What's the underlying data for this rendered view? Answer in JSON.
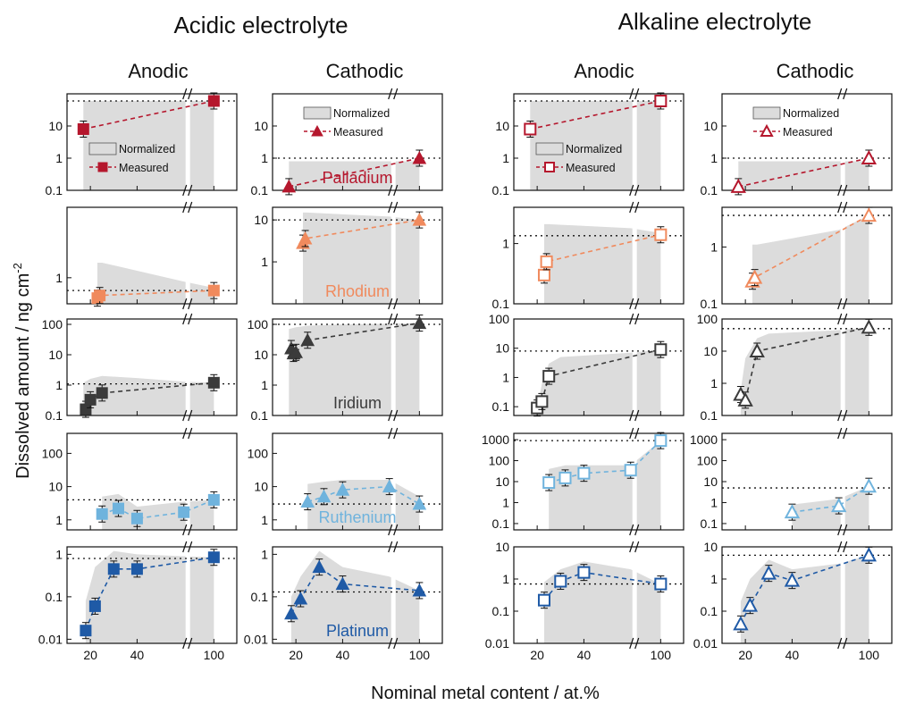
{
  "figure": {
    "group_titles": [
      "Acidic electrolyte",
      "Alkaline electrolyte"
    ],
    "column_titles": [
      "Anodic",
      "Cathodic",
      "Anodic",
      "Cathodic"
    ],
    "ylabel": "Dissolved amount / ng cm",
    "ylabel_superscript": "-2",
    "xlabel": "Nominal metal content / at.%",
    "x_tick_labels": [
      "20",
      "40",
      "100"
    ],
    "legend": {
      "normalized": "Normalized",
      "measured": "Measured"
    }
  },
  "colors": {
    "Palladium": "#b5172d",
    "Rhodium": "#f08a5d",
    "Iridium": "#3b3b3b",
    "Ruthenium": "#6fb3dd",
    "Platinum": "#1f5aa6",
    "shade": "#dcdcdc"
  },
  "chart_data": {
    "type": "scatter",
    "x_axis": {
      "label": "Nominal metal content / at.%",
      "ticks": [
        20,
        40,
        100
      ],
      "broken_between": [
        60,
        90
      ]
    },
    "y_scale": "log",
    "rows": [
      {
        "metal": "Palladium",
        "panels": [
          {
            "column": "Acidic Anodic",
            "yticks": [
              "0.1",
              "1",
              "10"
            ],
            "ylim": [
              0.1,
              100
            ],
            "reference_line": 60,
            "measured": {
              "x": [
                17,
                100
              ],
              "y": [
                8,
                60
              ]
            },
            "normalized": {
              "x": [
                17,
                100
              ],
              "y": [
                60,
                60
              ]
            },
            "legend": "right-middle"
          },
          {
            "column": "Acidic Cathodic",
            "yticks": [
              "0.1",
              "1",
              "10"
            ],
            "ylim": [
              0.1,
              100
            ],
            "reference_line": 1,
            "measured": {
              "x": [
                17,
                100
              ],
              "y": [
                0.13,
                1
              ]
            },
            "normalized": {
              "x": [
                17,
                100
              ],
              "y": [
                0.8,
                0.8
              ]
            },
            "legend": "top-left",
            "label": "Palladium"
          },
          {
            "column": "Alkaline Anodic",
            "yticks": [
              "0.1",
              "1",
              "10"
            ],
            "ylim": [
              0.1,
              100
            ],
            "reference_line": 60,
            "measured": {
              "x": [
                17,
                100
              ],
              "y": [
                8,
                60
              ]
            },
            "normalized": {
              "x": [
                17,
                100
              ],
              "y": [
                60,
                60
              ]
            },
            "legend": "right-middle"
          },
          {
            "column": "Alkaline Cathodic",
            "yticks": [
              "0.1",
              "1",
              "10"
            ],
            "ylim": [
              0.1,
              100
            ],
            "reference_line": 1,
            "measured": {
              "x": [
                17,
                100
              ],
              "y": [
                0.13,
                1
              ]
            },
            "normalized": {
              "x": [
                17,
                100
              ],
              "y": [
                0.8,
                0.8
              ]
            },
            "legend": "top-left"
          }
        ]
      },
      {
        "metal": "Rhodium",
        "panels": [
          {
            "column": "Acidic Anodic",
            "yticks": [
              "1"
            ],
            "ylim": [
              0.33,
              20
            ],
            "reference_line": 0.58,
            "measured": {
              "x": [
                23,
                24,
                100
              ],
              "y": [
                0.42,
                0.47,
                0.58
              ]
            },
            "normalized": {
              "x": [
                23,
                25,
                60,
                100
              ],
              "y": [
                1.9,
                1.9,
                0.85,
                0.65
              ]
            }
          },
          {
            "column": "Acidic Cathodic",
            "yticks": [
              "1",
              "10"
            ],
            "ylim": [
              0.1,
              20
            ],
            "reference_line": 10,
            "measured": {
              "x": [
                23,
                24,
                100
              ],
              "y": [
                2.8,
                3.6,
                10
              ]
            },
            "normalized": {
              "x": [
                23,
                25,
                60,
                100
              ],
              "y": [
                15,
                15,
                12,
                10
              ]
            },
            "label": "Rhodium"
          },
          {
            "column": "Alkaline Anodic",
            "yticks": [
              "0.1",
              "1"
            ],
            "ylim": [
              0.1,
              4
            ],
            "reference_line": 1.35,
            "measured": {
              "x": [
                23,
                24,
                100
              ],
              "y": [
                0.3,
                0.5,
                1.4
              ]
            },
            "normalized": {
              "x": [
                23,
                25,
                60,
                100
              ],
              "y": [
                2.1,
                2.1,
                1.8,
                1.5
              ]
            }
          },
          {
            "column": "Alkaline Cathodic",
            "yticks": [
              "0.1",
              "1"
            ],
            "ylim": [
              0.1,
              5
            ],
            "reference_line": 3.6,
            "measured": {
              "x": [
                23,
                24,
                100
              ],
              "y": [
                0.25,
                0.29,
                3.6
              ]
            },
            "normalized": {
              "x": [
                23,
                25,
                60,
                100
              ],
              "y": [
                1.1,
                1.1,
                2.0,
                3.6
              ]
            }
          }
        ]
      },
      {
        "metal": "Iridium",
        "panels": [
          {
            "column": "Acidic Anodic",
            "yticks": [
              "0.1",
              "1",
              "10",
              "100"
            ],
            "ylim": [
              0.1,
              150
            ],
            "reference_line": 1.1,
            "measured": {
              "x": [
                18,
                20,
                25,
                100
              ],
              "y": [
                0.16,
                0.33,
                0.55,
                1.2
              ]
            },
            "normalized": {
              "x": [
                17,
                20,
                25,
                40,
                60,
                100
              ],
              "y": [
                1.2,
                1.6,
                2.0,
                1.7,
                1.3,
                1.2
              ]
            }
          },
          {
            "column": "Acidic Cathodic",
            "yticks": [
              "0.1",
              "1",
              "10",
              "100"
            ],
            "ylim": [
              0.1,
              150
            ],
            "reference_line": 100,
            "measured": {
              "x": [
                18,
                19,
                20,
                25,
                100
              ],
              "y": [
                16,
                11,
                12,
                30,
                110
              ]
            },
            "normalized": {
              "x": [
                17,
                20,
                25,
                40,
                60,
                100
              ],
              "y": [
                70,
                80,
                90,
                100,
                105,
                110
              ]
            },
            "label": "Iridium"
          },
          {
            "column": "Alkaline Anodic",
            "yticks": [
              "0.1",
              "1",
              "10",
              "100"
            ],
            "ylim": [
              0.05,
              100
            ],
            "reference_line": 8,
            "measured": {
              "x": [
                20,
                22,
                25,
                100
              ],
              "y": [
                0.09,
                0.15,
                1.1,
                9
              ]
            },
            "normalized": {
              "x": [
                20,
                22,
                25,
                30,
                60,
                100
              ],
              "y": [
                0.09,
                0.6,
                3,
                5,
                7,
                9
              ]
            }
          },
          {
            "column": "Alkaline Cathodic",
            "yticks": [
              "0.1",
              "1",
              "10",
              "100"
            ],
            "ylim": [
              0.1,
              100
            ],
            "reference_line": 50,
            "measured": {
              "x": [
                18,
                20,
                25,
                100
              ],
              "y": [
                0.45,
                0.3,
                10,
                55
              ]
            },
            "normalized": {
              "x": [
                18,
                20,
                25,
                30,
                60,
                100
              ],
              "y": [
                0.6,
                6,
                25,
                35,
                45,
                55
              ]
            }
          }
        ]
      },
      {
        "metal": "Ruthenium",
        "panels": [
          {
            "column": "Acidic Anodic",
            "yticks": [
              "1",
              "10",
              "100"
            ],
            "ylim": [
              0.5,
              400
            ],
            "reference_line": 4,
            "measured": {
              "x": [
                25,
                32,
                40,
                60,
                100
              ],
              "y": [
                1.5,
                2.2,
                1.1,
                1.7,
                4
              ]
            },
            "normalized": {
              "x": [
                25,
                32,
                40,
                60,
                100
              ],
              "y": [
                5,
                6,
                2.5,
                3.5,
                4
              ]
            }
          },
          {
            "column": "Acidic Cathodic",
            "yticks": [
              "1",
              "10",
              "100"
            ],
            "ylim": [
              0.5,
              400
            ],
            "reference_line": 3,
            "measured": {
              "x": [
                25,
                32,
                40,
                60,
                100
              ],
              "y": [
                3.5,
                5,
                8,
                10,
                3
              ]
            },
            "normalized": {
              "x": [
                25,
                32,
                40,
                60,
                100
              ],
              "y": [
                12,
                14,
                16,
                16,
                5
              ]
            },
            "label": "Ruthenium"
          },
          {
            "column": "Alkaline Anodic",
            "yticks": [
              "0.1",
              "1",
              "10",
              "100",
              "1000"
            ],
            "ylim": [
              0.05,
              2000
            ],
            "reference_line": 900,
            "measured": {
              "x": [
                25,
                32,
                40,
                60,
                100
              ],
              "y": [
                9,
                15,
                25,
                35,
                900
              ]
            },
            "normalized": {
              "x": [
                25,
                32,
                40,
                60,
                100
              ],
              "y": [
                40,
                60,
                60,
                60,
                900
              ]
            }
          },
          {
            "column": "Alkaline Cathodic",
            "yticks": [
              "0.1",
              "1",
              "10",
              "100",
              "1000"
            ],
            "ylim": [
              0.05,
              2000
            ],
            "reference_line": 5,
            "measured": {
              "x": [
                40,
                60,
                100
              ],
              "y": [
                0.35,
                0.7,
                6
              ]
            },
            "normalized": {
              "x": [
                40,
                60,
                100
              ],
              "y": [
                0.8,
                1.5,
                6
              ]
            }
          }
        ]
      },
      {
        "metal": "Platinum",
        "panels": [
          {
            "column": "Acidic Anodic",
            "yticks": [
              "0.01",
              "0.1",
              "1"
            ],
            "ylim": [
              0.008,
              1.5
            ],
            "reference_line": 0.8,
            "measured": {
              "x": [
                18,
                22,
                30,
                40,
                100
              ],
              "y": [
                0.016,
                0.06,
                0.45,
                0.45,
                0.85
              ]
            },
            "normalized": {
              "x": [
                18,
                22,
                30,
                40,
                60,
                100
              ],
              "y": [
                0.08,
                0.5,
                1.2,
                1.0,
                0.9,
                0.85
              ]
            }
          },
          {
            "column": "Acidic Cathodic",
            "yticks": [
              "0.01",
              "0.1",
              "1"
            ],
            "ylim": [
              0.008,
              1.5
            ],
            "reference_line": 0.13,
            "measured": {
              "x": [
                18,
                22,
                30,
                40,
                100
              ],
              "y": [
                0.04,
                0.09,
                0.5,
                0.2,
                0.14
              ]
            },
            "normalized": {
              "x": [
                18,
                22,
                30,
                40,
                60,
                100
              ],
              "y": [
                0.1,
                0.3,
                1.2,
                0.5,
                0.3,
                0.14
              ]
            },
            "label": "Platinum"
          },
          {
            "column": "Alkaline Anodic",
            "yticks": [
              "0.01",
              "0.1",
              "1",
              "10"
            ],
            "ylim": [
              0.01,
              10
            ],
            "reference_line": 0.7,
            "measured": {
              "x": [
                23,
                30,
                40,
                100
              ],
              "y": [
                0.22,
                0.85,
                1.6,
                0.7
              ]
            },
            "normalized": {
              "x": [
                23,
                30,
                40,
                60,
                100
              ],
              "y": [
                0.8,
                2,
                3.5,
                2,
                0.7
              ]
            }
          },
          {
            "column": "Alkaline Cathodic",
            "yticks": [
              "0.01",
              "0.1",
              "1",
              "10"
            ],
            "ylim": [
              0.01,
              10
            ],
            "reference_line": 5.5,
            "measured": {
              "x": [
                18,
                22,
                30,
                40,
                100
              ],
              "y": [
                0.04,
                0.15,
                1.5,
                0.9,
                5.5
              ]
            },
            "normalized": {
              "x": [
                18,
                22,
                30,
                40,
                60,
                100
              ],
              "y": [
                0.2,
                1,
                4,
                2,
                3,
                5.5
              ]
            }
          }
        ]
      }
    ]
  }
}
